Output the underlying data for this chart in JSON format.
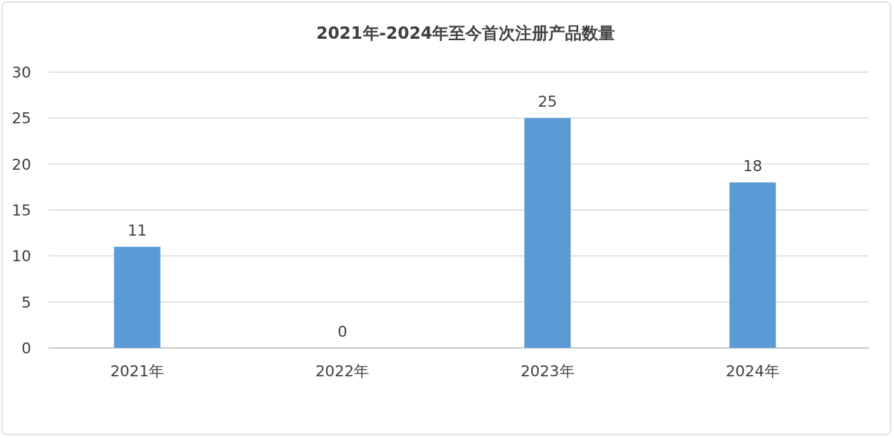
{
  "chart_data": {
    "type": "bar",
    "title": "2021年-2024年至今首次注册产品数量",
    "categories": [
      "2021年",
      "2022年",
      "2023年",
      "2024年"
    ],
    "values": [
      11,
      0,
      25,
      18
    ],
    "color": "#5b9bd5",
    "ylim": [
      0,
      30
    ],
    "yticks": [
      0,
      5,
      10,
      15,
      20,
      25,
      30
    ],
    "grid": "y",
    "data_labels": true
  }
}
